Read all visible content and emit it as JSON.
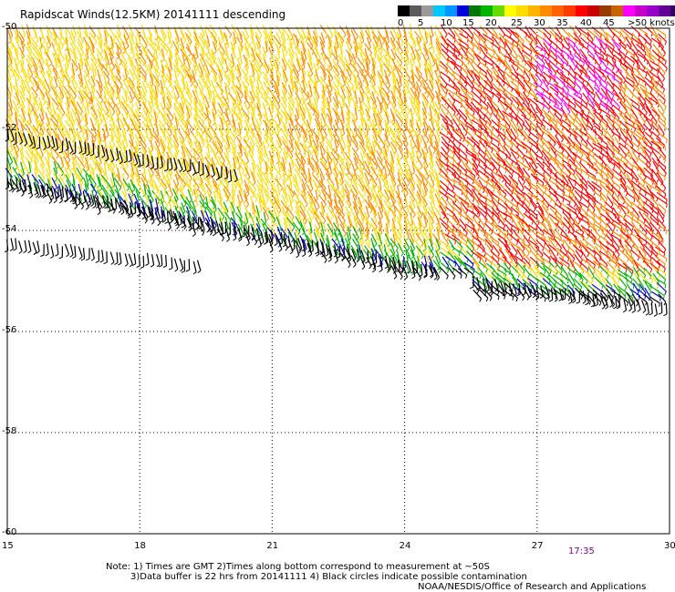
{
  "title": "Rapidscat Winds(12.5KM) 20141111 descending",
  "colorbar": {
    "labels": [
      "0",
      "5",
      "10",
      "15",
      "20",
      "25",
      "30",
      "35",
      "40",
      "45",
      ">50 knots"
    ],
    "colors": [
      "#000000",
      "#5a5a5a",
      "#9a9a9a",
      "#00c8ff",
      "#0096ff",
      "#0000dc",
      "#007800",
      "#00b400",
      "#64dc00",
      "#ffff00",
      "#ffdc00",
      "#ffb400",
      "#ff8c00",
      "#ff6400",
      "#ff3c00",
      "#ff0000",
      "#c80000",
      "#963c00",
      "#c86400",
      "#ff00ff",
      "#c800c8",
      "#9600c8",
      "#640096",
      "#320064"
    ]
  },
  "axes": {
    "lat_labels": [
      "-50",
      "-52",
      "-54",
      "-56",
      "-58",
      "-60"
    ],
    "lon_labels": [
      "15",
      "18",
      "21",
      "24",
      "27",
      "30"
    ],
    "lat_range": [
      -60,
      -50
    ],
    "lon_range": [
      15,
      30
    ]
  },
  "time_label": "17:35",
  "notes": {
    "line1": "Note: 1) Times are GMT 2)Times along bottom correspond to measurement at ~50S",
    "line2": "3)Data buffer is 22 hrs from 20141111 4) Black circles indicate possible contamination",
    "line3": "NOAA/NESDIS/Office of Research and Applications"
  },
  "wind_colors": {
    "low": "#000000",
    "blue": "#0000dc",
    "green": "#00b400",
    "yellow": "#ffdc00",
    "orange": "#ff8c00",
    "red": "#ff0000",
    "magenta": "#ff00ff"
  }
}
